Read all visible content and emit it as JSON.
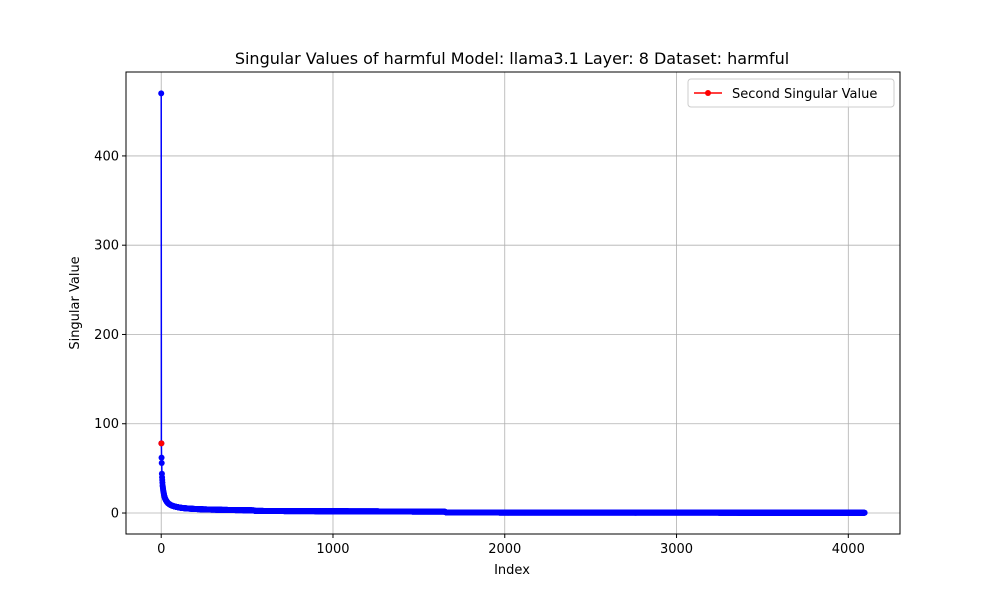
{
  "chart_data": {
    "type": "line",
    "title": "Singular Values of harmful Model: llama3.1 Layer: 8 Dataset: harmful",
    "xlabel": "Index",
    "ylabel": "Singular Value",
    "xlim": [
      -205,
      4301
    ],
    "ylim": [
      -23.5,
      494
    ],
    "xticks": [
      0,
      1000,
      2000,
      3000,
      4000
    ],
    "yticks": [
      0,
      100,
      200,
      300,
      400
    ],
    "grid": true,
    "legend_position": "top-right",
    "n_points": 4096,
    "series": [
      {
        "name": "",
        "color": "#0000ff",
        "marker": "circle",
        "points": [
          [
            0,
            470
          ],
          [
            1,
            78
          ],
          [
            2,
            62
          ],
          [
            3,
            56
          ],
          [
            4,
            44
          ],
          [
            5,
            40
          ],
          [
            6,
            37
          ],
          [
            7,
            34
          ],
          [
            8,
            31
          ],
          [
            10,
            28
          ],
          [
            12,
            25
          ],
          [
            15,
            22
          ],
          [
            18,
            19
          ],
          [
            22,
            16.5
          ],
          [
            27,
            14.5
          ],
          [
            33,
            12.5
          ],
          [
            40,
            11
          ],
          [
            50,
            9.5
          ],
          [
            60,
            8.5
          ],
          [
            75,
            7.5
          ],
          [
            90,
            6.8
          ],
          [
            110,
            6
          ],
          [
            130,
            5.5
          ],
          [
            160,
            5
          ],
          [
            200,
            4.5
          ],
          [
            250,
            4.1
          ],
          [
            300,
            3.8
          ],
          [
            400,
            3.4
          ],
          [
            500,
            3.1
          ],
          [
            540,
            3
          ],
          [
            545,
            2.4
          ],
          [
            700,
            2.2
          ],
          [
            900,
            2.05
          ],
          [
            1100,
            1.9
          ],
          [
            1300,
            1.75
          ],
          [
            1500,
            1.6
          ],
          [
            1650,
            1.5
          ],
          [
            1660,
            0.6
          ],
          [
            2000,
            0.5
          ],
          [
            2500,
            0.45
          ],
          [
            3000,
            0.4
          ],
          [
            3500,
            0.35
          ],
          [
            4000,
            0.3
          ],
          [
            4095,
            0.25
          ]
        ]
      },
      {
        "name": "Second Singular Value",
        "color": "#ff0000",
        "marker": "circle",
        "points": [
          [
            1,
            78
          ]
        ]
      }
    ]
  }
}
